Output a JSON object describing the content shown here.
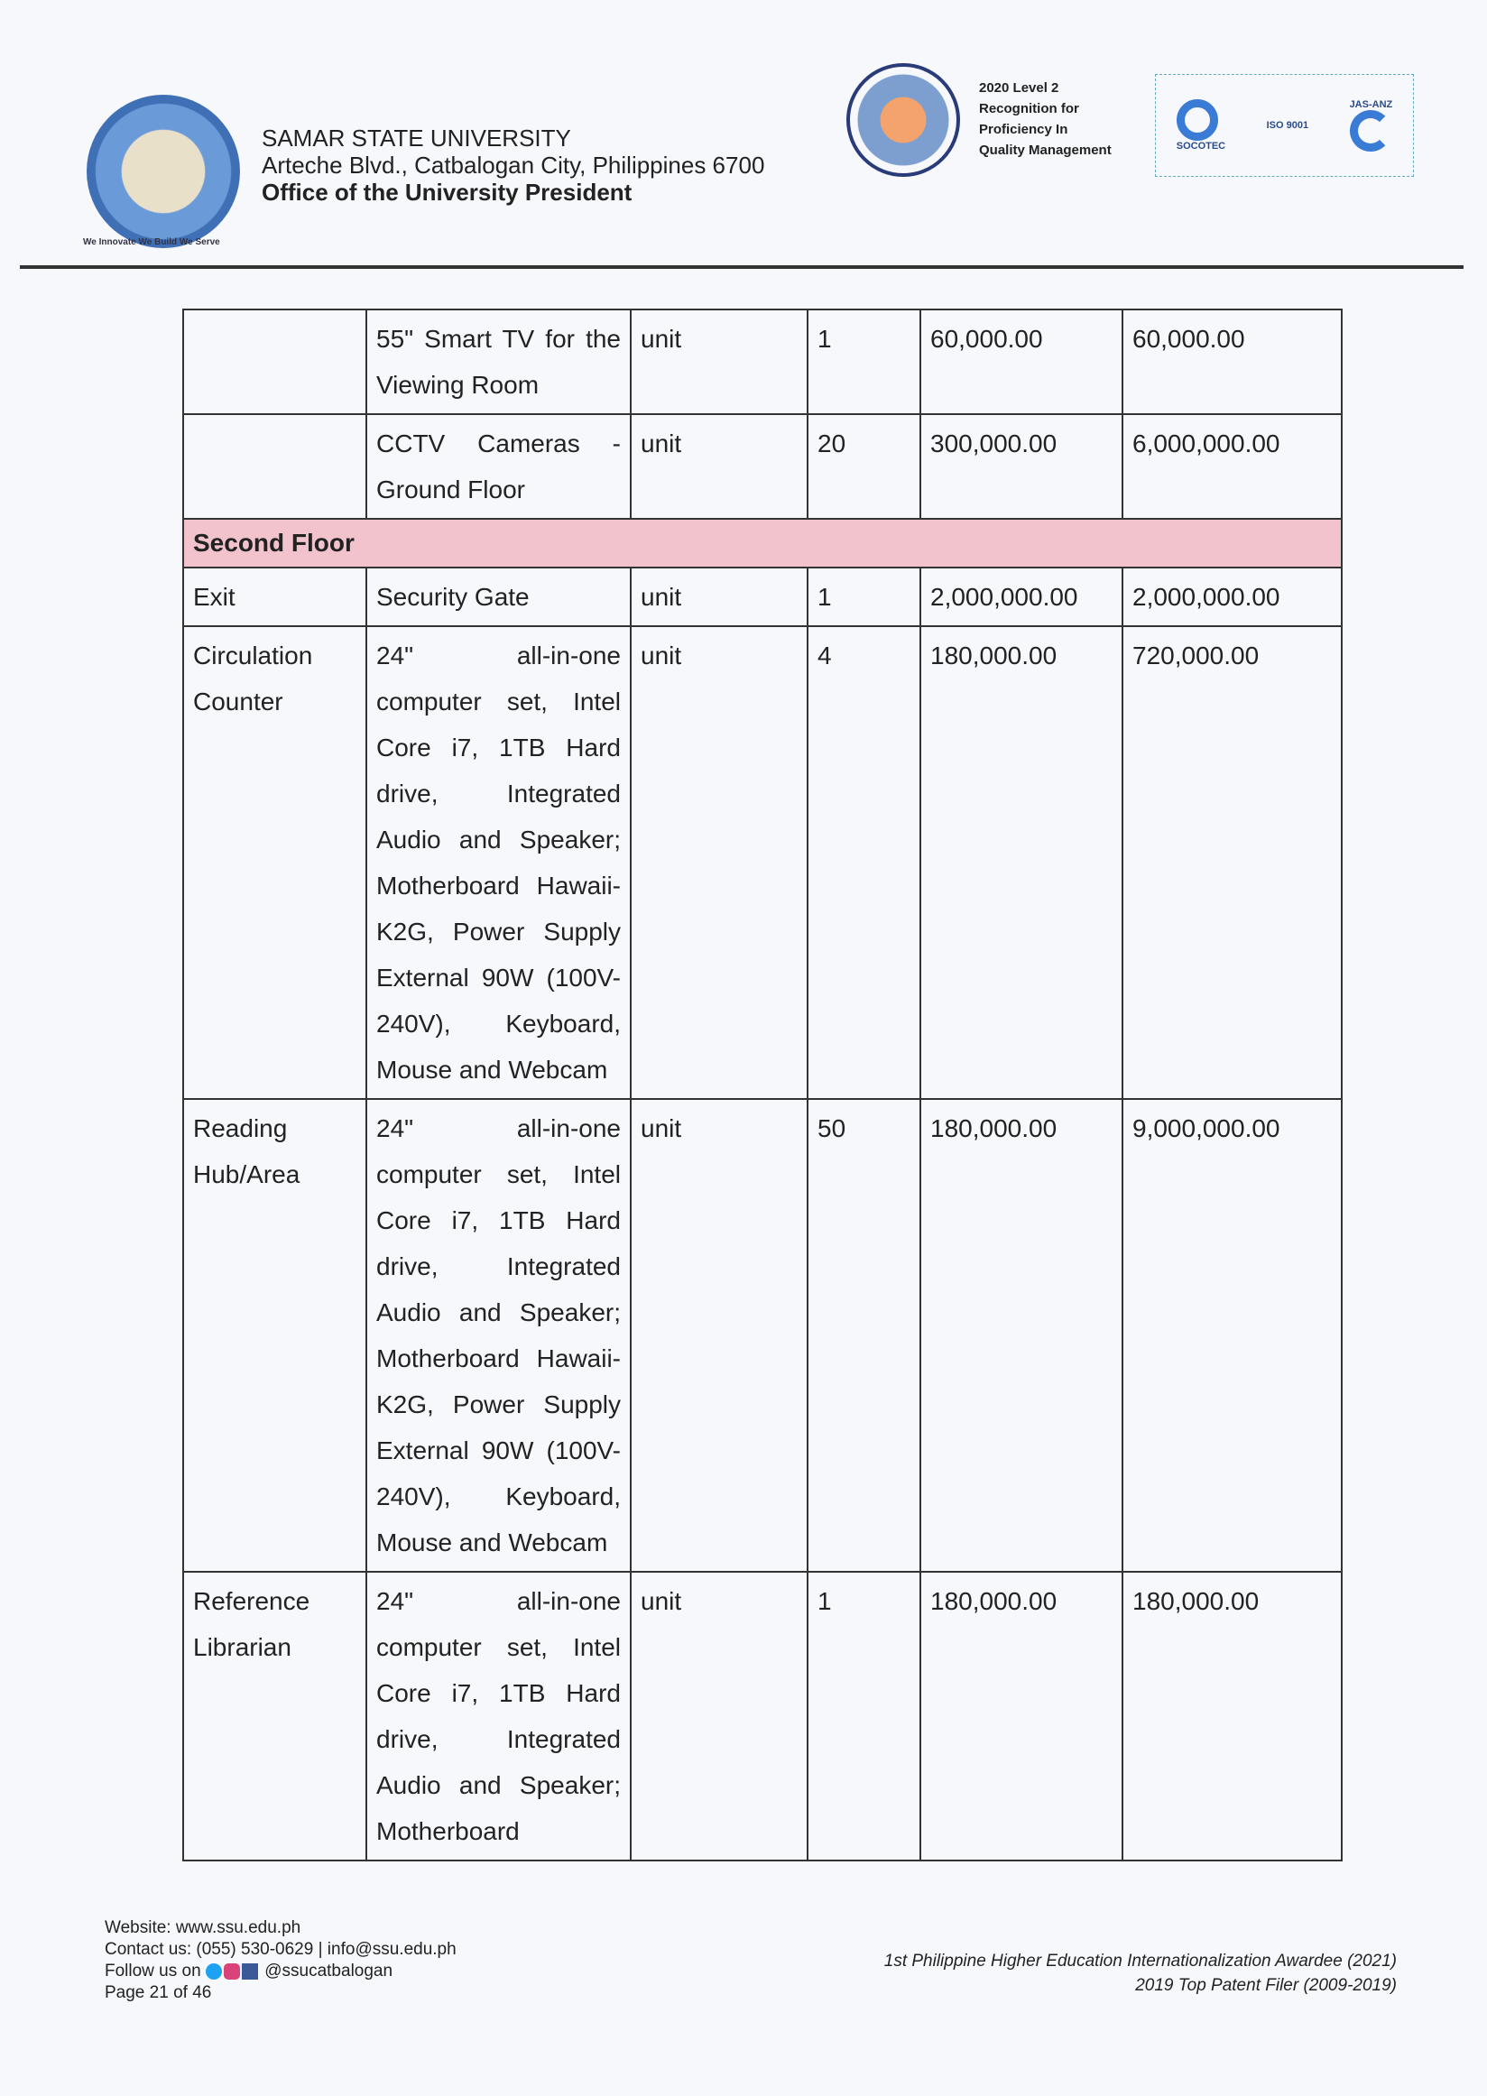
{
  "header": {
    "logo_tagline": "We Innovate We Build We Serve",
    "university": "SAMAR STATE UNIVERSITY",
    "address": "Arteche Blvd., Catbalogan City, Philippines 6700",
    "office": "Office of the University President",
    "award": [
      "2020 Level 2",
      "Recognition for",
      "Proficiency In",
      "Quality Management"
    ],
    "cert": {
      "socotec": "SOCOTEC",
      "iso": "ISO 9001",
      "jas": "JAS-ANZ"
    }
  },
  "table": {
    "rows": [
      {
        "area": "",
        "item": "55\" Smart TV for the Viewing Room",
        "unit": "unit",
        "qty": "1",
        "cost": "60,000.00",
        "total": "60,000.00"
      },
      {
        "area": "",
        "item": "CCTV Cameras - Ground Floor",
        "unit": "unit",
        "qty": "20",
        "cost": "300,000.00",
        "total": "6,000,000.00"
      },
      {
        "section": "Second Floor"
      },
      {
        "area": "Exit",
        "item": "Security Gate",
        "unit": "unit",
        "qty": "1",
        "cost": "2,000,000.00",
        "total": "2,000,000.00"
      },
      {
        "area": "Circulation Counter",
        "item": "24\" all-in-one computer set, Intel Core i7, 1TB Hard drive, Integrated Audio and Speaker; Motherboard Hawaii-K2G, Power Supply External 90W (100V-240V), Keyboard, Mouse and Webcam",
        "unit": "unit",
        "qty": "4",
        "cost": "180,000.00",
        "total": "720,000.00"
      },
      {
        "area": "Reading Hub/Area",
        "item": "24\" all-in-one computer set, Intel Core i7, 1TB Hard drive, Integrated Audio and Speaker; Motherboard Hawaii-K2G, Power Supply External 90W (100V-240V), Keyboard, Mouse and Webcam",
        "unit": "unit",
        "qty": "50",
        "cost": "180,000.00",
        "total": "9,000,000.00"
      },
      {
        "area": "Reference Librarian",
        "item": "24\" all-in-one computer set, Intel Core i7, 1TB Hard drive, Integrated Audio and Speaker; Motherboard",
        "unit": "unit",
        "qty": "1",
        "cost": "180,000.00",
        "total": "180,000.00"
      }
    ]
  },
  "footer": {
    "website": "Website: www.ssu.edu.ph",
    "contact": "Contact us: (055) 530-0629 | info@ssu.edu.ph",
    "follow": "Follow us on",
    "handle": "@ssucatbalogan",
    "page": "Page 21 of 46",
    "award1": "1st Philippine Higher Education Internationalization Awardee (2021)",
    "award2": "2019 Top Patent Filer (2009-2019)"
  }
}
